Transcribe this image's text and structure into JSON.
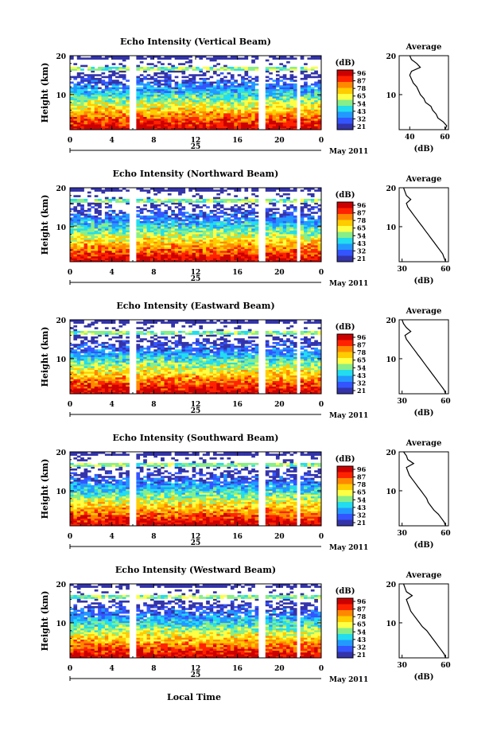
{
  "figure": {
    "x_axis_label": "Local Time",
    "date_label": "May 2011",
    "day_label": "25"
  },
  "colorbar": {
    "unit": "(dB)",
    "ticks": [
      "96",
      "87",
      "78",
      "65",
      "54",
      "43",
      "32",
      "21"
    ],
    "colors": [
      "#cc0000",
      "#ff2200",
      "#ff8800",
      "#ffcc00",
      "#ffff44",
      "#88ee88",
      "#22ddee",
      "#2299ff",
      "#3355ff",
      "#3333aa"
    ]
  },
  "chart_data": [
    {
      "type": "heatmap",
      "title": "Echo Intensity (Vertical Beam)",
      "ylabel": "Height (km)",
      "x_ticks": [
        "0",
        "4",
        "8",
        "12",
        "16",
        "20",
        "0"
      ],
      "y_ticks": [
        "20",
        "10"
      ],
      "xlim": [
        0,
        24
      ],
      "ylim": [
        1,
        20
      ],
      "data_gaps_hours": [
        [
          5.8,
          6.2
        ],
        [
          18.1,
          18.6
        ],
        [
          21.6,
          22.1
        ]
      ],
      "average_profile": {
        "title": "Average",
        "xlabel": "(dB)",
        "x_ticks": [
          "40",
          "60"
        ],
        "y_ticks": [
          "20",
          "10"
        ],
        "xlim": [
          34,
          62
        ],
        "height_km": [
          1,
          2,
          3,
          4,
          5,
          6,
          7,
          8,
          9,
          10,
          11,
          12,
          13,
          14,
          15,
          16,
          17,
          18,
          19,
          20
        ],
        "value_db": [
          60,
          61,
          59,
          56,
          55,
          53,
          52,
          49,
          48,
          46,
          45,
          44,
          42,
          41,
          40,
          41,
          46,
          44,
          41,
          40
        ]
      }
    },
    {
      "type": "heatmap",
      "title": "Echo Intensity (Northward Beam)",
      "ylabel": "Height (km)",
      "x_ticks": [
        "0",
        "4",
        "8",
        "12",
        "16",
        "20",
        "0"
      ],
      "y_ticks": [
        "20",
        "10"
      ],
      "xlim": [
        0,
        24
      ],
      "ylim": [
        1,
        20
      ],
      "data_gaps_hours": [
        [
          5.8,
          6.2
        ],
        [
          18.1,
          18.6
        ],
        [
          21.6,
          22.1
        ]
      ],
      "average_profile": {
        "title": "Average",
        "xlabel": "(dB)",
        "x_ticks": [
          "30",
          "60"
        ],
        "y_ticks": [
          "20",
          "10"
        ],
        "xlim": [
          28,
          62
        ],
        "height_km": [
          1,
          2,
          3,
          4,
          5,
          6,
          7,
          8,
          9,
          10,
          11,
          12,
          13,
          14,
          15,
          16,
          17,
          18,
          19,
          20
        ],
        "value_db": [
          60,
          59,
          58,
          56,
          54,
          52,
          50,
          48,
          46,
          44,
          42,
          40,
          38,
          36,
          34,
          33,
          36,
          33,
          32,
          31
        ]
      }
    },
    {
      "type": "heatmap",
      "title": "Echo Intensity (Eastward Beam)",
      "ylabel": "Height (km)",
      "x_ticks": [
        "0",
        "4",
        "8",
        "12",
        "16",
        "20",
        "0"
      ],
      "y_ticks": [
        "20",
        "10"
      ],
      "xlim": [
        0,
        24
      ],
      "ylim": [
        1,
        20
      ],
      "data_gaps_hours": [
        [
          5.8,
          6.2
        ],
        [
          18.1,
          18.6
        ],
        [
          21.6,
          22.1
        ]
      ],
      "average_profile": {
        "title": "Average",
        "xlabel": "(dB)",
        "x_ticks": [
          "30",
          "60"
        ],
        "y_ticks": [
          "20",
          "10"
        ],
        "xlim": [
          28,
          62
        ],
        "height_km": [
          1,
          2,
          3,
          4,
          5,
          6,
          7,
          8,
          9,
          10,
          11,
          12,
          13,
          14,
          15,
          16,
          17,
          18,
          19,
          20
        ],
        "value_db": [
          60,
          59,
          57,
          55,
          53,
          51,
          49,
          47,
          45,
          43,
          41,
          39,
          37,
          35,
          33,
          32,
          36,
          33,
          31,
          30
        ]
      }
    },
    {
      "type": "heatmap",
      "title": "Echo Intensity (Southward Beam)",
      "ylabel": "Height (km)",
      "x_ticks": [
        "0",
        "4",
        "8",
        "12",
        "16",
        "20",
        "0"
      ],
      "y_ticks": [
        "20",
        "10"
      ],
      "xlim": [
        0,
        24
      ],
      "ylim": [
        1,
        20
      ],
      "data_gaps_hours": [
        [
          5.8,
          6.2
        ],
        [
          18.1,
          18.6
        ],
        [
          21.6,
          22.1
        ]
      ],
      "average_profile": {
        "title": "Average",
        "xlabel": "(dB)",
        "x_ticks": [
          "30",
          "60"
        ],
        "y_ticks": [
          "20",
          "10"
        ],
        "xlim": [
          28,
          62
        ],
        "height_km": [
          1,
          2,
          3,
          4,
          5,
          6,
          7,
          8,
          9,
          10,
          11,
          12,
          13,
          14,
          15,
          16,
          17,
          18,
          19,
          20
        ],
        "value_db": [
          60,
          59,
          57,
          55,
          52,
          50,
          48,
          47,
          45,
          43,
          41,
          39,
          37,
          35,
          34,
          33,
          38,
          34,
          33,
          31
        ]
      }
    },
    {
      "type": "heatmap",
      "title": "Echo Intensity (Westward Beam)",
      "ylabel": "Height (km)",
      "x_ticks": [
        "0",
        "4",
        "8",
        "12",
        "16",
        "20",
        "0"
      ],
      "y_ticks": [
        "20",
        "10"
      ],
      "xlim": [
        0,
        24
      ],
      "ylim": [
        1,
        20
      ],
      "data_gaps_hours": [
        [
          5.8,
          6.2
        ],
        [
          18.1,
          18.6
        ],
        [
          21.6,
          22.1
        ]
      ],
      "average_profile": {
        "title": "Average",
        "xlabel": "(dB)",
        "x_ticks": [
          "30",
          "60"
        ],
        "y_ticks": [
          "20",
          "10"
        ],
        "xlim": [
          28,
          62
        ],
        "height_km": [
          1,
          2,
          3,
          4,
          5,
          6,
          7,
          8,
          9,
          10,
          11,
          12,
          13,
          14,
          15,
          16,
          17,
          18,
          19,
          20
        ],
        "value_db": [
          60,
          59,
          57,
          55,
          53,
          51,
          49,
          47,
          44,
          42,
          40,
          38,
          36,
          35,
          34,
          33,
          37,
          33,
          32,
          31
        ]
      }
    }
  ]
}
